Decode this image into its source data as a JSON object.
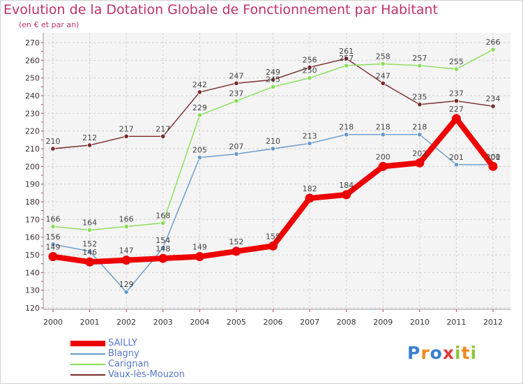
{
  "chart_data": {
    "type": "line",
    "title": "Evolution de la Dotation Globale de Fonctionnement par Habitant",
    "subtitle": "(en € et par an)",
    "xlabel": "",
    "ylabel": "",
    "categories": [
      "2000",
      "2001",
      "2002",
      "2003",
      "2004",
      "2005",
      "2006",
      "2007",
      "2008",
      "2009",
      "2010",
      "2011",
      "2012"
    ],
    "ylim": [
      120,
      270
    ],
    "yticks": [
      120,
      130,
      140,
      150,
      160,
      170,
      180,
      190,
      200,
      210,
      220,
      230,
      240,
      250,
      260,
      270
    ],
    "grid": true,
    "legend_position": "bottom-left",
    "series": [
      {
        "name": "SAILLY",
        "color": "#ee0000",
        "values": [
          149,
          146,
          147,
          148,
          149,
          152,
          155,
          182,
          184,
          200,
          202,
          227,
          200
        ]
      },
      {
        "name": "Blagny",
        "color": "#6699cc",
        "values": [
          156,
          152,
          129,
          154,
          205,
          207,
          210,
          213,
          218,
          218,
          218,
          201,
          201
        ]
      },
      {
        "name": "Carignan",
        "color": "#88dd55",
        "values": [
          166,
          164,
          166,
          168,
          229,
          237,
          245,
          250,
          257,
          258,
          257,
          255,
          266
        ]
      },
      {
        "name": "Vaux-lès-Mouzon",
        "color": "#7a2a2a",
        "values": [
          210,
          212,
          217,
          217,
          242,
          247,
          249,
          256,
          261,
          247,
          235,
          237,
          234
        ]
      }
    ]
  },
  "brand": {
    "letters": [
      "P",
      "r",
      "o",
      "x",
      "i",
      "t",
      "i"
    ],
    "colors": [
      "#3a7fd0",
      "#f08a20",
      "#3a7fd0",
      "#e03c3c",
      "#8cc63f",
      "#f08a20",
      "#8cc63f"
    ]
  }
}
